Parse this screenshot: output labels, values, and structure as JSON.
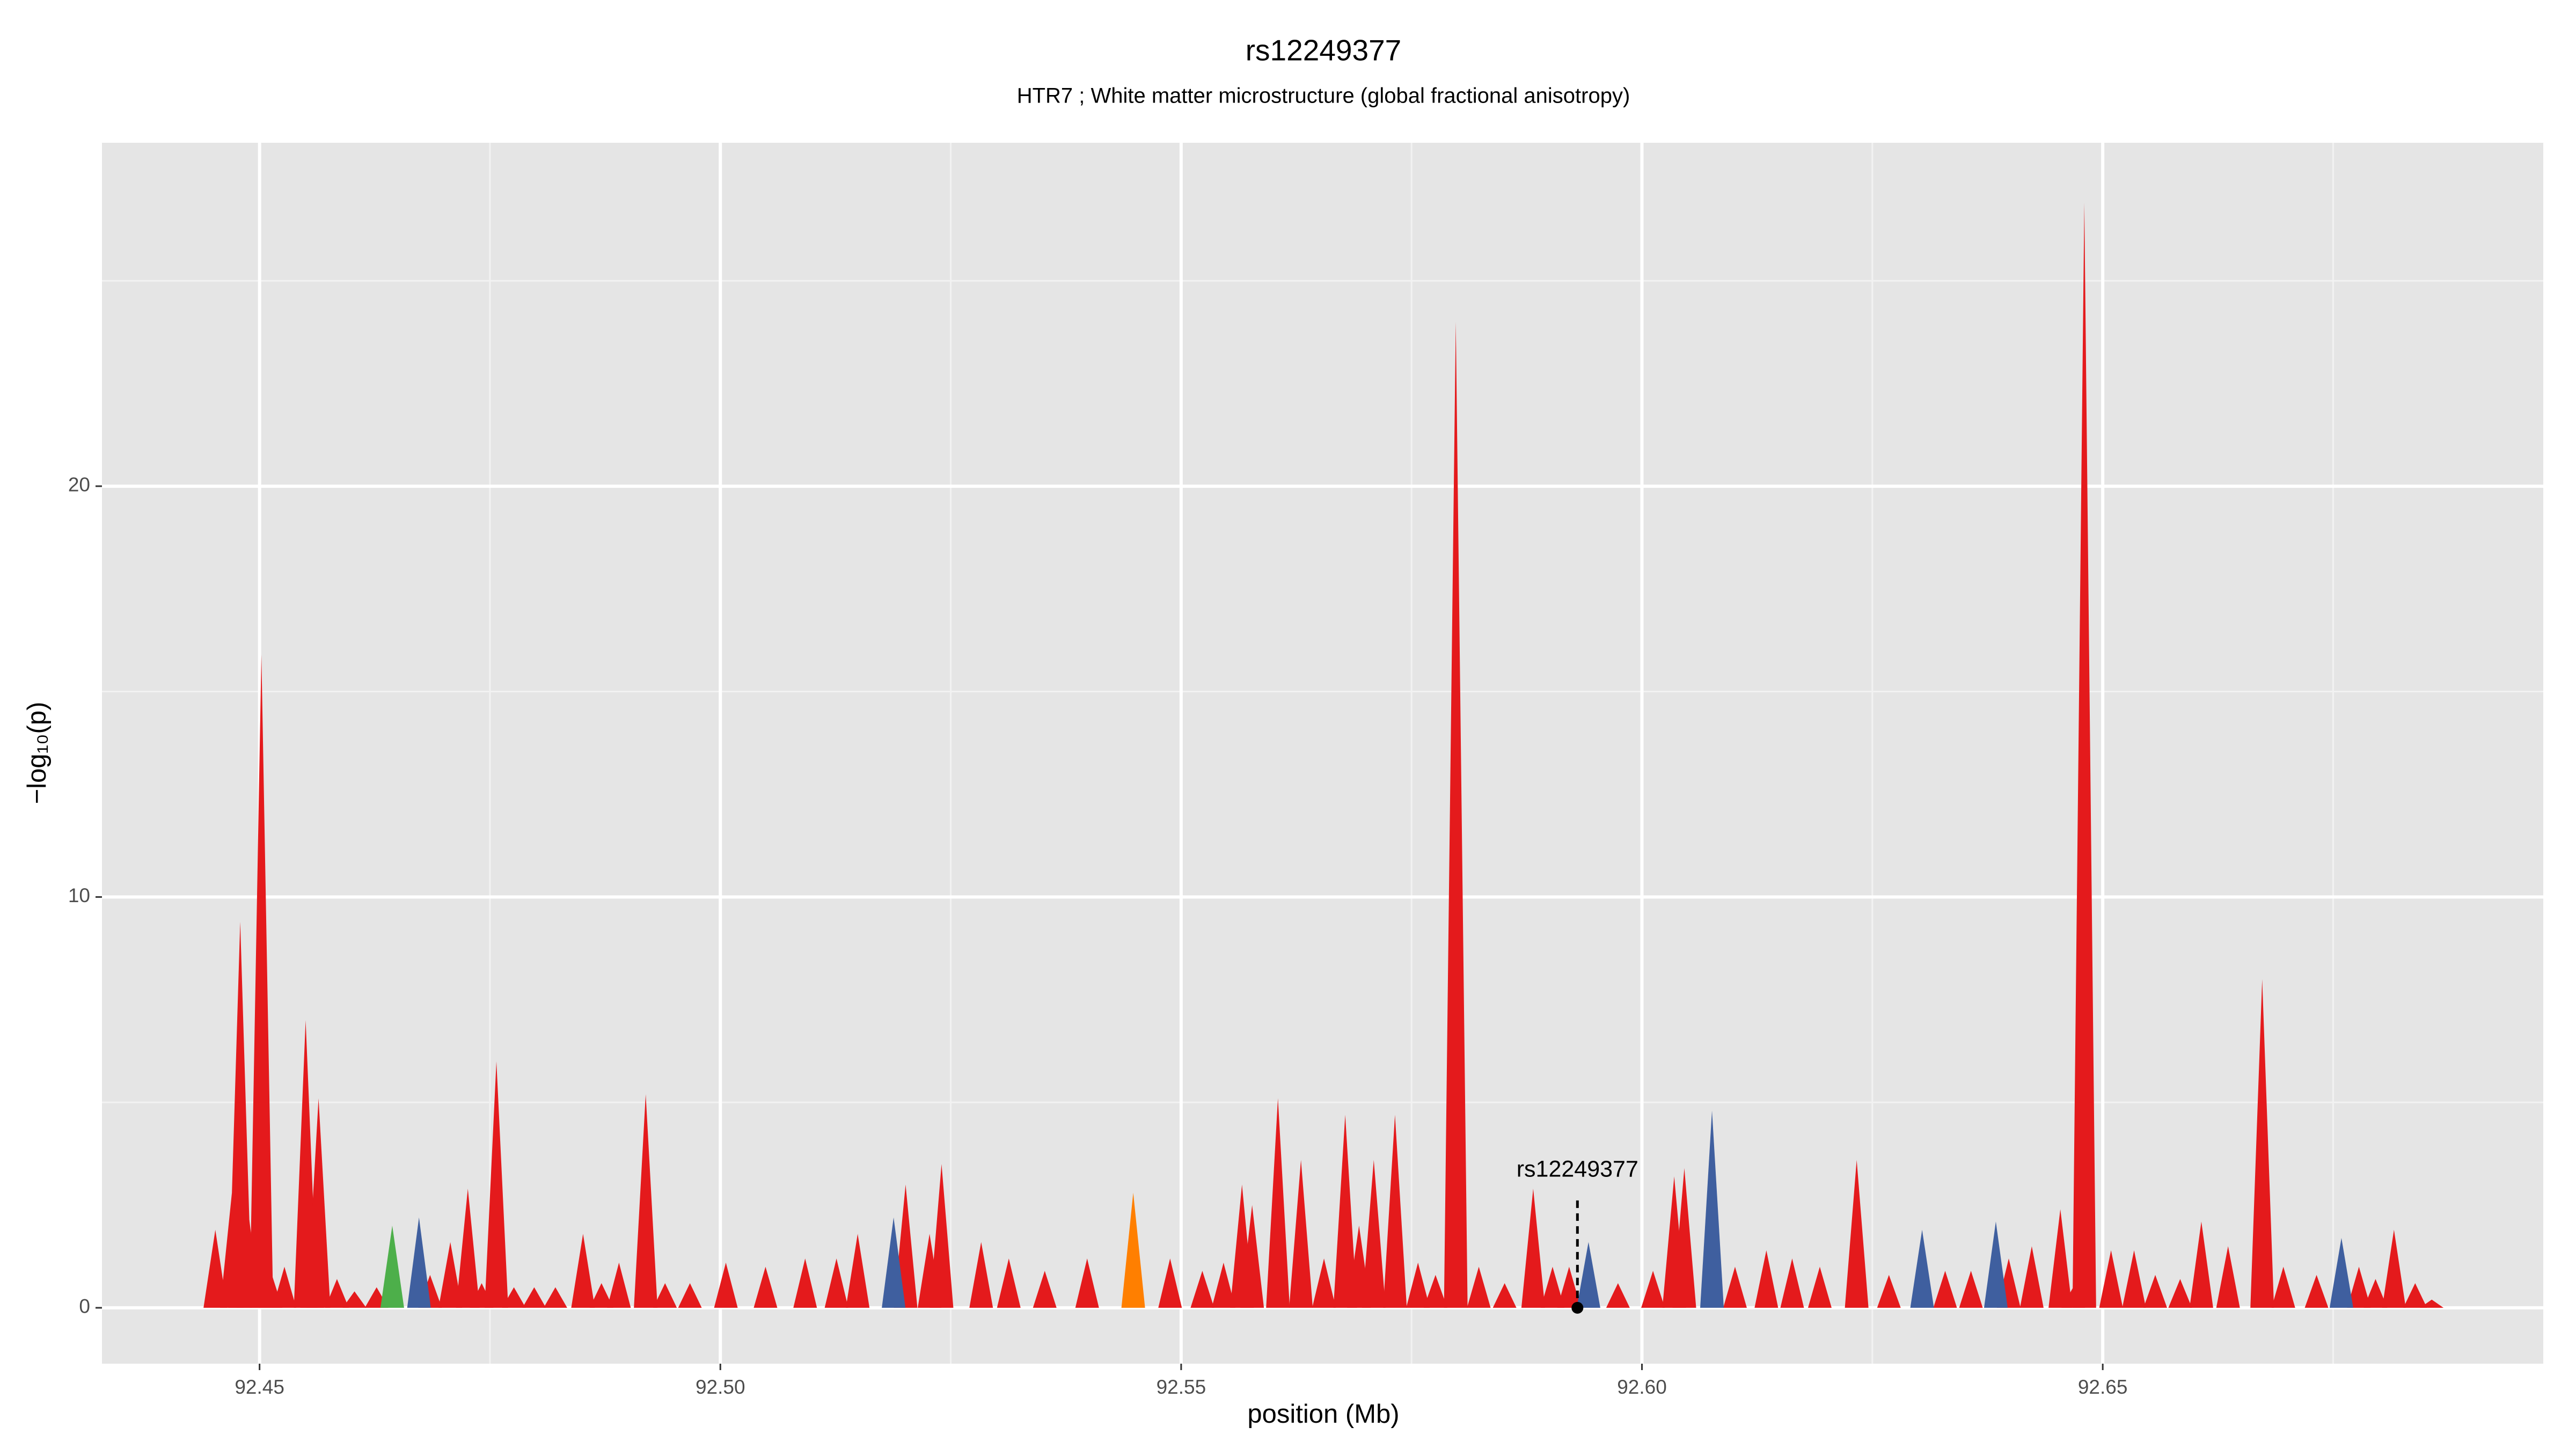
{
  "chart_data": {
    "type": "spike-area",
    "title": "rs12249377",
    "subtitle": "HTR7 ; White matter microstructure (global fractional anisotropy)",
    "x_label": "position (Mb)",
    "y_label": "−log₁₀(p)",
    "xlim": [
      92.4329,
      92.6978
    ],
    "ylim": [
      -1.36,
      28.36
    ],
    "xticks": [
      {
        "value": 92.45,
        "label": "92.45"
      },
      {
        "value": 92.5,
        "label": "92.50"
      },
      {
        "value": 92.55,
        "label": "92.55"
      },
      {
        "value": 92.6,
        "label": "92.60"
      },
      {
        "value": 92.65,
        "label": "92.65"
      }
    ],
    "yticks": [
      0,
      10,
      20
    ],
    "x_minor_grid": [
      92.475,
      92.525,
      92.575,
      92.625,
      92.675
    ],
    "y_minor_grid": [
      5,
      15,
      25
    ],
    "grid": true,
    "series": [
      {
        "color": "#e41a1c",
        "x": [
          92.4452,
          92.447,
          92.4479,
          92.4488,
          92.4502,
          92.4512,
          92.4527,
          92.455,
          92.4557,
          92.4564,
          92.4584,
          92.4603,
          92.4627,
          92.4685,
          92.4707,
          92.4726,
          92.4741,
          92.4757,
          92.4776,
          92.4798,
          92.4821,
          92.4851,
          92.4871,
          92.489,
          92.4919,
          92.494,
          92.4967,
          92.5006,
          92.5049,
          92.5092,
          92.5126,
          92.5149,
          92.5201,
          92.5227,
          92.524,
          92.5283,
          92.5313,
          92.5352,
          92.5398,
          92.5488,
          92.5523,
          92.5546,
          92.5566,
          92.5577,
          92.5605,
          92.563,
          92.5655,
          92.5678,
          92.5693,
          92.5709,
          92.5732,
          92.5757,
          92.5776,
          92.5798,
          92.5823,
          92.5851,
          92.5882,
          92.5903,
          92.5921,
          92.5974,
          92.6012,
          92.6035,
          92.6046,
          92.6101,
          92.6135,
          92.6163,
          92.6193,
          92.6233,
          92.6268,
          92.6329,
          92.6357,
          92.6398,
          92.6423,
          92.6454,
          92.6468,
          92.648,
          92.6509,
          92.6534,
          92.6557,
          92.6584,
          92.6607,
          92.6636,
          92.6673,
          92.6696,
          92.6732,
          92.6778,
          92.6796,
          92.6816,
          92.6839,
          92.6857
        ],
        "values": [
          1.9,
          2.8,
          9.4,
          2.3,
          15.9,
          0.9,
          1.0,
          7.0,
          2.6,
          5.1,
          0.7,
          0.4,
          0.5,
          0.8,
          1.6,
          2.9,
          0.6,
          6.0,
          0.5,
          0.5,
          0.5,
          1.8,
          0.6,
          1.1,
          5.2,
          0.6,
          0.6,
          1.1,
          1.0,
          1.2,
          1.2,
          1.8,
          3.0,
          1.8,
          3.5,
          1.6,
          1.2,
          0.9,
          1.2,
          1.2,
          0.9,
          1.1,
          3.0,
          2.5,
          5.1,
          3.6,
          1.2,
          4.7,
          2.0,
          3.6,
          4.7,
          1.1,
          0.8,
          24.0,
          1.0,
          0.6,
          2.9,
          1.0,
          1.0,
          0.6,
          0.9,
          3.2,
          3.4,
          1.0,
          1.4,
          1.2,
          1.0,
          3.6,
          0.8,
          0.9,
          0.9,
          1.2,
          1.5,
          2.4,
          0.5,
          26.9,
          1.4,
          1.4,
          0.8,
          0.7,
          2.1,
          1.5,
          8.0,
          1.0,
          0.8,
          1.0,
          0.7,
          1.9,
          0.6,
          0.2
        ]
      },
      {
        "color": "#3f5f9f",
        "x": [
          92.4673,
          92.5188,
          92.5942,
          92.6076,
          92.6304,
          92.6384,
          92.6759
        ],
        "values": [
          2.2,
          2.2,
          1.6,
          4.8,
          1.9,
          2.1,
          1.7
        ]
      },
      {
        "color": "#4daf4a",
        "x": [
          92.4644
        ],
        "values": [
          2.0
        ]
      },
      {
        "color": "#ff7f00",
        "x": [
          92.5448
        ],
        "values": [
          2.8
        ]
      }
    ],
    "annotations": [
      {
        "text": "rs12249377",
        "x": 92.593,
        "y": 0
      }
    ]
  }
}
